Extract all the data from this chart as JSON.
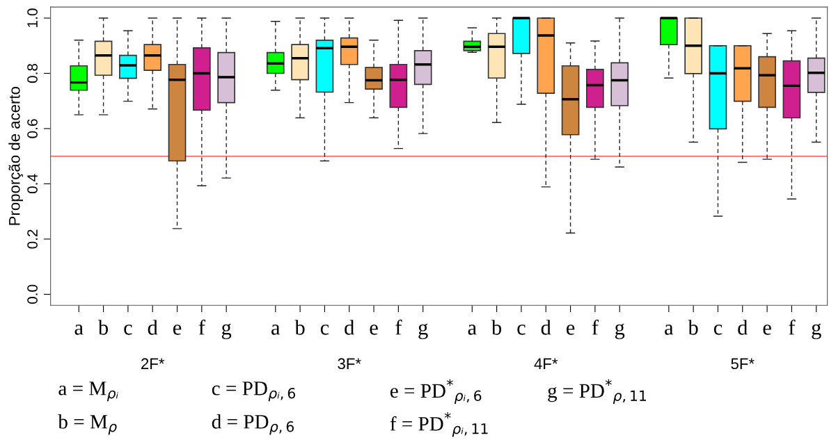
{
  "chart_data": {
    "type": "box",
    "ylabel": "Proporção de acerto",
    "categories": [
      "a",
      "b",
      "c",
      "d",
      "e",
      "f",
      "g",
      "a",
      "b",
      "c",
      "d",
      "e",
      "f",
      "g",
      "a",
      "b",
      "c",
      "d",
      "e",
      "f",
      "g",
      "a",
      "b",
      "c",
      "d",
      "e",
      "f",
      "g"
    ],
    "colors": [
      "#00ff00",
      "#ffe4b5",
      "#00ffff",
      "#ffa54f",
      "#cd853f",
      "#d02090",
      "#d8bfd8",
      "#00ff00",
      "#ffe4b5",
      "#00ffff",
      "#ffa54f",
      "#cd853f",
      "#d02090",
      "#d8bfd8",
      "#00ff00",
      "#ffe4b5",
      "#00ffff",
      "#ffa54f",
      "#cd853f",
      "#d02090",
      "#d8bfd8",
      "#00ff00",
      "#ffe4b5",
      "#00ffff",
      "#ffa54f",
      "#cd853f",
      "#d02090",
      "#d8bfd8"
    ],
    "boxes": [
      {
        "low": 0.65,
        "q1": 0.739,
        "median": 0.767,
        "q3": 0.827,
        "high": 0.92
      },
      {
        "low": 0.65,
        "q1": 0.793,
        "median": 0.865,
        "q3": 0.916,
        "high": 1.0
      },
      {
        "low": 0.699,
        "q1": 0.782,
        "median": 0.829,
        "q3": 0.865,
        "high": 0.954
      },
      {
        "low": 0.671,
        "q1": 0.811,
        "median": 0.865,
        "q3": 0.904,
        "high": 1.0
      },
      {
        "low": 0.238,
        "q1": 0.483,
        "median": 0.777,
        "q3": 0.832,
        "high": 1.0
      },
      {
        "low": 0.393,
        "q1": 0.667,
        "median": 0.8,
        "q3": 0.892,
        "high": 1.0
      },
      {
        "low": 0.421,
        "q1": 0.694,
        "median": 0.786,
        "q3": 0.875,
        "high": 1.0
      },
      {
        "low": 0.739,
        "q1": 0.8,
        "median": 0.836,
        "q3": 0.875,
        "high": 0.988
      },
      {
        "low": 0.639,
        "q1": 0.777,
        "median": 0.855,
        "q3": 0.904,
        "high": 1.0
      },
      {
        "low": 0.483,
        "q1": 0.732,
        "median": 0.891,
        "q3": 0.92,
        "high": 1.0
      },
      {
        "low": 0.694,
        "q1": 0.832,
        "median": 0.896,
        "q3": 0.928,
        "high": 1.0
      },
      {
        "low": 0.639,
        "q1": 0.743,
        "median": 0.775,
        "q3": 0.821,
        "high": 0.92
      },
      {
        "low": 0.528,
        "q1": 0.677,
        "median": 0.777,
        "q3": 0.832,
        "high": 0.992
      },
      {
        "low": 0.582,
        "q1": 0.76,
        "median": 0.832,
        "q3": 0.882,
        "high": 1.0
      },
      {
        "low": 0.876,
        "q1": 0.882,
        "median": 0.896,
        "q3": 0.916,
        "high": 0.965
      },
      {
        "low": 0.622,
        "q1": 0.783,
        "median": 0.896,
        "q3": 0.944,
        "high": 1.0
      },
      {
        "low": 0.688,
        "q1": 0.872,
        "median": 1.0,
        "q3": 1.0,
        "high": 1.0
      },
      {
        "low": 0.389,
        "q1": 0.728,
        "median": 0.937,
        "q3": 1.0,
        "high": 1.0
      },
      {
        "low": 0.222,
        "q1": 0.578,
        "median": 0.706,
        "q3": 0.827,
        "high": 0.91
      },
      {
        "low": 0.489,
        "q1": 0.677,
        "median": 0.757,
        "q3": 0.814,
        "high": 0.917
      },
      {
        "low": 0.461,
        "q1": 0.683,
        "median": 0.775,
        "q3": 0.838,
        "high": 1.0
      },
      {
        "low": 0.783,
        "q1": 0.904,
        "median": 1.0,
        "q3": 1.0,
        "high": 1.0
      },
      {
        "low": 0.551,
        "q1": 0.799,
        "median": 0.9,
        "q3": 1.0,
        "high": 1.0
      },
      {
        "low": 0.283,
        "q1": 0.599,
        "median": 0.8,
        "q3": 0.9,
        "high": 0.9
      },
      {
        "low": 0.478,
        "q1": 0.699,
        "median": 0.818,
        "q3": 0.9,
        "high": 0.9
      },
      {
        "low": 0.489,
        "q1": 0.677,
        "median": 0.793,
        "q3": 0.86,
        "high": 0.944
      },
      {
        "low": 0.345,
        "q1": 0.639,
        "median": 0.755,
        "q3": 0.845,
        "high": 0.954
      },
      {
        "low": 0.551,
        "q1": 0.731,
        "median": 0.802,
        "q3": 0.855,
        "high": 1.0
      }
    ],
    "ylim": [
      -0.04,
      1.04
    ],
    "yticks": [
      {
        "value": 0,
        "label": "0.0"
      },
      {
        "value": 0.2,
        "label": "0.2"
      },
      {
        "value": 0.4,
        "label": "0.4"
      },
      {
        "value": 0.6,
        "label": "0.6"
      },
      {
        "value": 0.8,
        "label": "0.8"
      },
      {
        "value": 1,
        "label": "1.0"
      }
    ],
    "ref_lines": [
      {
        "axis": "y",
        "value": 0.5,
        "color": "#ff5a5a"
      }
    ],
    "grid": false,
    "legend": false,
    "annotations": [
      "2F*",
      "3F*",
      "4F*",
      "5F*",
      "a = M$_{ρᵢ}$",
      "b = M$_{ρ}$",
      "c = PD$_{ρᵢ,6}$",
      "d = PD$_{ρ,6}$",
      "e = PD$^{*}$$_{ρᵢ,6}$",
      "f = PD$^{*}$$_{ρᵢ,11}$",
      "g = PD$^{*}$$_{ρ,11}$"
    ]
  }
}
